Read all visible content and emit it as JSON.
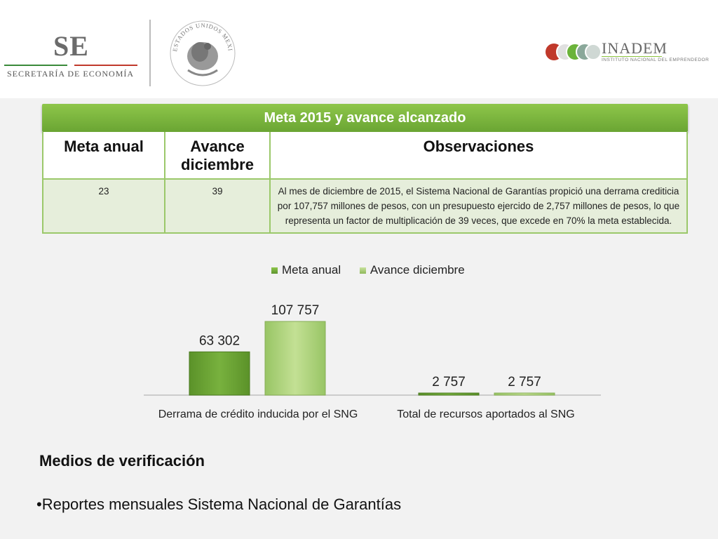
{
  "header": {
    "se_logo": "SE",
    "se_subtitle": "SECRETARÍA DE ECONOMÍA",
    "seal_text": "ESTADOS UNIDOS MEXICANOS",
    "inadem_name": "INADEM",
    "inadem_subtitle": "INSTITUTO NACIONAL DEL EMPRENDEDOR"
  },
  "table": {
    "title": "Meta 2015 y avance alcanzado",
    "headers": [
      "Meta anual",
      "Avance diciembre",
      "Observaciones"
    ],
    "row": [
      "23",
      "39",
      "Al mes de diciembre de 2015, el Sistema Nacional de Garantías propició una derrama crediticia por 107,757 millones de pesos, con un presupuesto ejercido de 2,757 millones de pesos, lo que representa un factor de multiplicación de 39 veces, que excede en 70% la meta establecida."
    ]
  },
  "chart_data": {
    "type": "bar",
    "categories": [
      "Derrama de crédito inducida por el SNG",
      "Total de recursos aportados al SNG"
    ],
    "series": [
      {
        "name": "Meta anual",
        "values": [
          63302,
          2757
        ],
        "labels": [
          "63 302",
          "2 757"
        ],
        "color": "#6fa53a"
      },
      {
        "name": "Avance diciembre",
        "values": [
          107757,
          2757
        ],
        "labels": [
          "107 757",
          "2 757"
        ],
        "color": "#b3d57f"
      }
    ],
    "ylim": [
      0,
      107757
    ],
    "legend": "top",
    "grid": false
  },
  "verification": {
    "title": "Medios de verificación",
    "item": "•Reportes  mensuales Sistema Nacional de Garantías"
  }
}
